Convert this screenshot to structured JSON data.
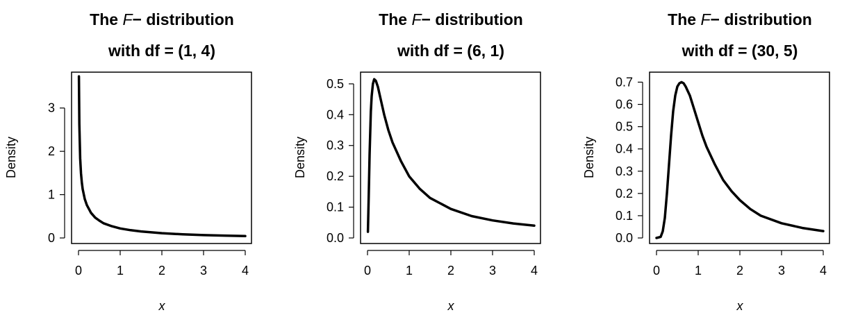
{
  "chart_data": [
    {
      "type": "line",
      "title_prefix": "The ",
      "title_italic": "F",
      "title_suffix": "− distribution",
      "subtitle": "with df = (1, 4)",
      "xlabel": "x",
      "ylabel": "Density",
      "xlim": [
        0,
        4
      ],
      "ylim": [
        0,
        3.7
      ],
      "xticks": [
        0,
        1,
        2,
        3,
        4
      ],
      "yticks": [
        0,
        1,
        2,
        3
      ],
      "ytick_labels": [
        "0",
        "1",
        "2",
        "3"
      ],
      "grid": false,
      "series": [
        {
          "x": [
            0.01,
            0.02,
            0.04,
            0.06,
            0.08,
            0.1,
            0.15,
            0.2,
            0.3,
            0.4,
            0.5,
            0.6,
            0.8,
            1.0,
            1.25,
            1.5,
            2.0,
            2.5,
            3.0,
            3.5,
            4.0
          ],
          "y": [
            3.73,
            2.63,
            1.84,
            1.49,
            1.28,
            1.13,
            0.9,
            0.76,
            0.58,
            0.47,
            0.4,
            0.34,
            0.27,
            0.22,
            0.18,
            0.15,
            0.11,
            0.084,
            0.066,
            0.054,
            0.044
          ]
        }
      ]
    },
    {
      "type": "line",
      "title_prefix": "The ",
      "title_italic": "F",
      "title_suffix": "− distribution",
      "subtitle": "with df = (6, 1)",
      "xlabel": "x",
      "ylabel": "Density",
      "xlim": [
        0,
        4
      ],
      "ylim": [
        0,
        0.52
      ],
      "xticks": [
        0,
        1,
        2,
        3,
        4
      ],
      "yticks": [
        0,
        0.1,
        0.2,
        0.3,
        0.4,
        0.5
      ],
      "ytick_labels": [
        "0.0",
        "0.1",
        "0.2",
        "0.3",
        "0.4",
        "0.5"
      ],
      "grid": false,
      "series": [
        {
          "x": [
            0.01,
            0.03,
            0.05,
            0.08,
            0.1,
            0.13,
            0.16,
            0.2,
            0.25,
            0.3,
            0.4,
            0.5,
            0.6,
            0.8,
            1.0,
            1.25,
            1.5,
            2.0,
            2.5,
            3.0,
            3.5,
            4.0
          ],
          "y": [
            0.02,
            0.14,
            0.27,
            0.41,
            0.46,
            0.5,
            0.515,
            0.51,
            0.49,
            0.46,
            0.4,
            0.35,
            0.31,
            0.25,
            0.2,
            0.16,
            0.13,
            0.094,
            0.071,
            0.057,
            0.047,
            0.04
          ]
        }
      ]
    },
    {
      "type": "line",
      "title_prefix": "The ",
      "title_italic": "F",
      "title_suffix": "− distribution",
      "subtitle": "with df = (30, 5)",
      "xlabel": "x",
      "ylabel": "Density",
      "xlim": [
        0,
        4
      ],
      "ylim": [
        0,
        0.72
      ],
      "xticks": [
        0,
        1,
        2,
        3,
        4
      ],
      "yticks": [
        0,
        0.1,
        0.2,
        0.3,
        0.4,
        0.5,
        0.6,
        0.7
      ],
      "ytick_labels": [
        "0.0",
        "0.1",
        "0.2",
        "0.3",
        "0.4",
        "0.5",
        "0.6",
        "0.7"
      ],
      "grid": false,
      "series": [
        {
          "x": [
            0.0,
            0.1,
            0.15,
            0.2,
            0.25,
            0.3,
            0.35,
            0.4,
            0.45,
            0.5,
            0.55,
            0.6,
            0.65,
            0.7,
            0.75,
            0.8,
            0.9,
            1.0,
            1.1,
            1.2,
            1.4,
            1.6,
            1.8,
            2.0,
            2.25,
            2.5,
            3.0,
            3.5,
            4.0
          ],
          "y": [
            0.0,
            0.005,
            0.03,
            0.09,
            0.2,
            0.33,
            0.46,
            0.57,
            0.64,
            0.68,
            0.695,
            0.7,
            0.695,
            0.68,
            0.66,
            0.64,
            0.58,
            0.52,
            0.46,
            0.41,
            0.33,
            0.26,
            0.21,
            0.17,
            0.13,
            0.1,
            0.066,
            0.045,
            0.031
          ]
        }
      ]
    }
  ]
}
